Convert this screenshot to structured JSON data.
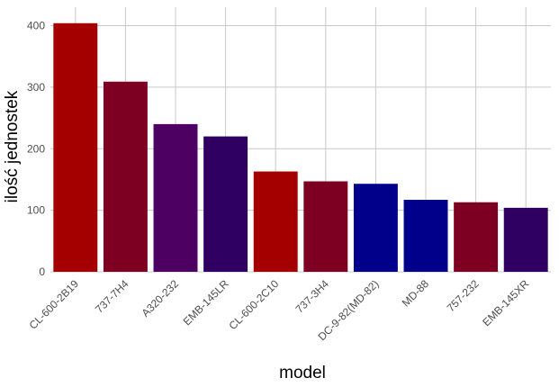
{
  "chart_data": {
    "type": "bar",
    "title": "",
    "xlabel": "model",
    "ylabel": "ilość jednostek",
    "categories": [
      "CL-600-2B19",
      "737-7H4",
      "A320-232",
      "EMB-145LR",
      "CL-600-2C10",
      "737-3H4",
      "DC-9-82(MD-82)",
      "MD-88",
      "757-232",
      "EMB-145XR"
    ],
    "values": [
      404,
      309,
      240,
      220,
      163,
      147,
      143,
      117,
      113,
      104
    ],
    "colors": [
      "#a50000",
      "#7d0022",
      "#4e0062",
      "#2f0062",
      "#a50000",
      "#7d0022",
      "#00008b",
      "#00008b",
      "#7d0022",
      "#2f0062"
    ],
    "ylim": [
      0,
      430
    ],
    "yticks": [
      0,
      100,
      200,
      300,
      400
    ],
    "grid": true,
    "legend": "none"
  }
}
